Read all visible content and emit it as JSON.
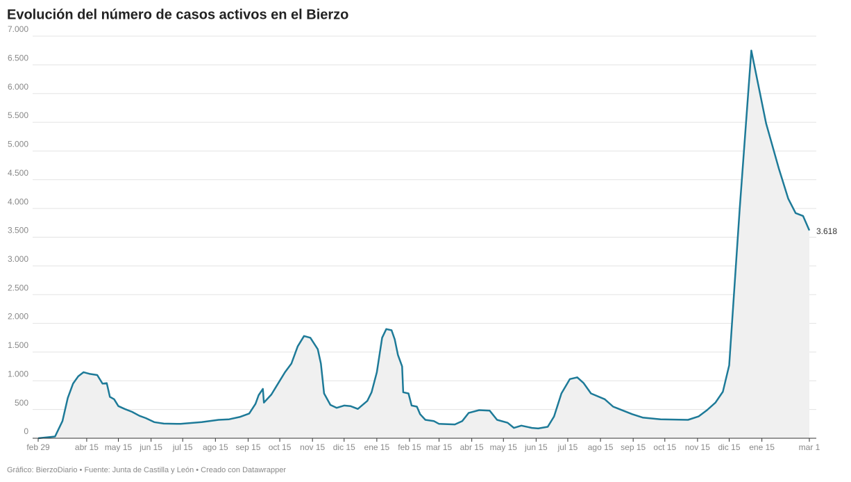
{
  "chart_data": {
    "type": "line",
    "title": "Evolución del número de casos activos en el Bierzo",
    "source": "Gráfico: BierzoDiario • Fuente: Junta de Castilla y León • Creado con Datawrapper",
    "x": [
      0,
      16,
      23,
      28,
      33,
      38,
      43,
      49,
      56,
      61,
      65,
      68,
      72,
      76,
      82,
      89,
      96,
      102,
      110,
      119,
      135,
      155,
      171,
      181,
      191,
      200,
      206,
      209,
      213,
      214,
      221,
      227,
      234,
      240,
      246,
      252,
      258,
      265,
      268,
      271,
      277,
      283,
      290,
      296,
      303,
      312,
      316,
      321,
      326,
      330,
      335,
      338,
      341,
      345,
      346,
      351,
      354,
      359,
      362,
      367,
      375,
      380,
      395,
      402,
      408,
      418,
      428,
      435,
      445,
      451,
      458,
      468,
      474,
      483,
      489,
      496,
      504,
      511,
      517,
      524,
      537,
      545,
      563,
      573,
      590,
      616,
      626,
      634,
      642,
      649,
      655,
      665,
      676,
      690,
      702,
      711,
      718,
      725,
      731
    ],
    "series": [
      {
        "color": "#1d7a98",
        "values": [
          0,
          30,
          300,
          700,
          950,
          1080,
          1150,
          1120,
          1100,
          950,
          960,
          720,
          680,
          560,
          510,
          460,
          390,
          350,
          280,
          255,
          250,
          280,
          320,
          330,
          370,
          430,
          600,
          750,
          860,
          620,
          760,
          940,
          1150,
          1300,
          1600,
          1780,
          1750,
          1550,
          1300,
          780,
          580,
          530,
          570,
          560,
          510,
          650,
          800,
          1150,
          1750,
          1900,
          1880,
          1720,
          1450,
          1250,
          800,
          780,
          570,
          550,
          420,
          320,
          300,
          250,
          240,
          300,
          440,
          490,
          480,
          320,
          270,
          180,
          220,
          180,
          170,
          200,
          380,
          780,
          1030,
          1060,
          960,
          780,
          680,
          550,
          420,
          360,
          330,
          320,
          380,
          490,
          620,
          810,
          1270,
          4000,
          6750,
          5480,
          4700,
          4170,
          3920,
          3870,
          3618
        ],
        "value_labels": [
          null,
          null,
          null,
          null,
          null,
          null,
          null,
          null,
          null,
          null,
          null,
          null,
          null,
          null,
          null,
          null,
          null,
          null,
          null,
          null,
          null,
          null,
          null,
          null,
          null,
          null,
          null,
          null,
          null,
          null,
          null,
          null,
          null,
          null,
          null,
          null,
          null,
          null,
          null,
          null,
          null,
          null,
          null,
          null,
          null,
          null,
          null,
          null,
          null,
          null,
          null,
          null,
          null,
          null,
          null,
          null,
          null,
          null,
          null,
          null,
          null,
          null,
          null,
          null,
          null,
          null,
          null,
          null,
          null,
          null,
          null,
          null,
          null,
          null,
          null,
          null,
          null,
          null,
          null,
          null,
          null,
          null,
          null,
          null,
          null,
          null,
          null,
          null,
          null,
          null,
          null,
          null,
          null,
          null,
          null,
          null,
          null,
          null,
          "3.618"
        ]
      }
    ],
    "xlim": [
      0,
      731
    ],
    "xticks": [
      {
        "value": 0,
        "label": "feb 29"
      },
      {
        "value": 46,
        "label": "abr 15"
      },
      {
        "value": 76,
        "label": "may 15"
      },
      {
        "value": 107,
        "label": "jun 15"
      },
      {
        "value": 137,
        "label": "jul 15"
      },
      {
        "value": 168,
        "label": "ago 15"
      },
      {
        "value": 199,
        "label": "sep 15"
      },
      {
        "value": 229,
        "label": "oct 15"
      },
      {
        "value": 260,
        "label": "nov 15"
      },
      {
        "value": 290,
        "label": "dic 15"
      },
      {
        "value": 321,
        "label": "ene 15"
      },
      {
        "value": 352,
        "label": "feb 15"
      },
      {
        "value": 380,
        "label": "mar 15"
      },
      {
        "value": 411,
        "label": "abr 15"
      },
      {
        "value": 441,
        "label": "may 15"
      },
      {
        "value": 472,
        "label": "jun 15"
      },
      {
        "value": 502,
        "label": "jul 15"
      },
      {
        "value": 533,
        "label": "ago 15"
      },
      {
        "value": 564,
        "label": "sep 15"
      },
      {
        "value": 594,
        "label": "oct 15"
      },
      {
        "value": 625,
        "label": "nov 15"
      },
      {
        "value": 655,
        "label": "dic 15"
      },
      {
        "value": 686,
        "label": "ene 15"
      },
      {
        "value": 731,
        "label": "mar 1"
      }
    ],
    "ylim": [
      0,
      7000
    ],
    "yticks": [
      0,
      500,
      {
        "value": 1000,
        "label": "1.000"
      },
      {
        "value": 1500,
        "label": "1.500"
      },
      {
        "value": 2000,
        "label": "2.000"
      },
      {
        "value": 2500,
        "label": "2.500"
      },
      {
        "value": 3000,
        "label": "3.000"
      },
      {
        "value": 3500,
        "label": "3.500"
      },
      {
        "value": 4000,
        "label": "4.000"
      },
      {
        "value": 4500,
        "label": "4.500"
      },
      {
        "value": 5000,
        "label": "5.000"
      },
      {
        "value": 5500,
        "label": "5.500"
      },
      {
        "value": 6000,
        "label": "6.000"
      },
      {
        "value": 6500,
        "label": "6.500"
      },
      {
        "value": 7000,
        "label": "7.000"
      }
    ],
    "grid": true,
    "area_color": "#f0f0f0"
  }
}
